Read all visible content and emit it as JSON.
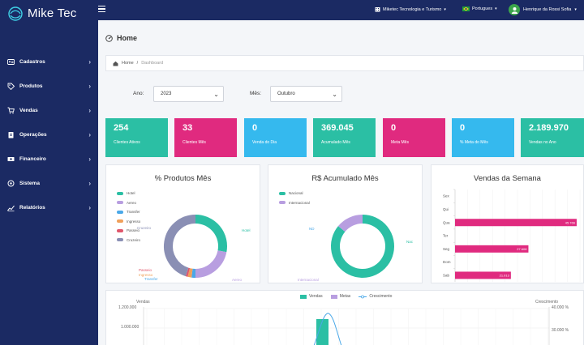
{
  "brand": {
    "name": "Mike Tec"
  },
  "sidebar": {
    "items": [
      {
        "label": "Cadastros",
        "icon": "id-card-icon"
      },
      {
        "label": "Produtos",
        "icon": "tag-icon"
      },
      {
        "label": "Vendas",
        "icon": "cart-icon"
      },
      {
        "label": "Operações",
        "icon": "clipboard-icon"
      },
      {
        "label": "Financeiro",
        "icon": "money-icon"
      },
      {
        "label": "Sistema",
        "icon": "gear-icon"
      },
      {
        "label": "Relatórios",
        "icon": "chart-icon"
      }
    ]
  },
  "topbar": {
    "company": "Miketec Tecnologia e Turismo",
    "language": "Portugues",
    "user": "Henrique da Rossi Sofia"
  },
  "page": {
    "title": "Home"
  },
  "breadcrumb": {
    "home": "Home",
    "separator": "/",
    "current": "Dashboard"
  },
  "filters": {
    "year_label": "Ano:",
    "year_value": "2023",
    "month_label": "Mês:",
    "month_value": "Outubro"
  },
  "cards": [
    {
      "value": "254",
      "label": "Clientes Ativos",
      "color": "#2bbfa4"
    },
    {
      "value": "33",
      "label": "Clientes Mês",
      "color": "#e02a7f"
    },
    {
      "value": "0",
      "label": "Venda do Dia",
      "color": "#35b9ee"
    },
    {
      "value": "369.045",
      "label": "Acumulado Mês",
      "color": "#2bbfa4"
    },
    {
      "value": "0",
      "label": "Meta Mês",
      "color": "#e02a7f"
    },
    {
      "value": "0",
      "label": "% Meta do Mês",
      "color": "#35b9ee"
    },
    {
      "value": "2.189.970",
      "label": "Vendas no Ano",
      "color": "#2bbfa4"
    }
  ],
  "chart_data": [
    {
      "type": "pie",
      "title": "% Produtos Mês",
      "categories": [
        "Hotel",
        "Aereo",
        "Transfer",
        "Ingresso",
        "Passeio",
        "Cruzeiro"
      ],
      "values": [
        28,
        22,
        2,
        2,
        1,
        45
      ],
      "colors": [
        "#2bbfa4",
        "#b89ee0",
        "#4aa8e8",
        "#f0a05a",
        "#e0566b",
        "#8a8fb4"
      ],
      "slice_labels": [
        "Hotel",
        "Aereo",
        "Transfer",
        "Ingresso",
        "Passeio",
        "Cruzeiro"
      ],
      "legend_position": "top-left"
    },
    {
      "type": "pie",
      "title": "R$ Acumulado Mês",
      "categories": [
        "Nacional",
        "Internacional"
      ],
      "values": [
        86,
        14
      ],
      "colors": [
        "#2bbfa4",
        "#b89ee0"
      ],
      "slice_labels": [
        "Nac",
        "Internacional"
      ],
      "extra_label": "ND",
      "legend_position": "top-left"
    },
    {
      "type": "bar",
      "orientation": "horizontal",
      "title": "Vendas da Semana",
      "categories": [
        "Sex",
        "Qui",
        "Qua",
        "Ter",
        "Seg",
        "Dom",
        "Sab"
      ],
      "values": [
        0,
        0,
        45766,
        0,
        27608,
        0,
        21013
      ],
      "value_labels": [
        "",
        "",
        "45.766",
        "",
        "27.608",
        "",
        "21.013"
      ],
      "color": "#e02a7f",
      "xlim": [
        0,
        47000
      ]
    },
    {
      "type": "bar",
      "title": "",
      "ylabel": "Vendas",
      "y2label": "Crescimento",
      "series": [
        {
          "name": "Vendas",
          "color": "#2bbfa4"
        },
        {
          "name": "Metas",
          "color": "#b89ee0"
        },
        {
          "name": "Crescimento",
          "color": "#4aa8e8"
        }
      ],
      "y_ticks": [
        "1.200.000",
        "1.000.000"
      ],
      "y2_ticks": [
        "40.000 %",
        "30.000 %"
      ]
    }
  ]
}
